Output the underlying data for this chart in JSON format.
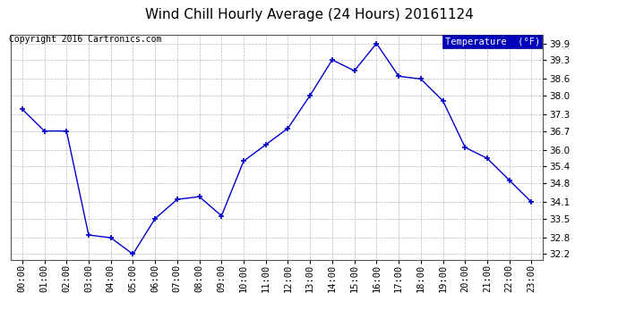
{
  "title": "Wind Chill Hourly Average (24 Hours) 20161124",
  "copyright": "Copyright 2016 Cartronics.com",
  "legend_label": "Temperature  (°F)",
  "hours": [
    "00:00",
    "01:00",
    "02:00",
    "03:00",
    "04:00",
    "05:00",
    "06:00",
    "07:00",
    "08:00",
    "09:00",
    "10:00",
    "11:00",
    "12:00",
    "13:00",
    "14:00",
    "15:00",
    "16:00",
    "17:00",
    "18:00",
    "19:00",
    "20:00",
    "21:00",
    "22:00",
    "23:00"
  ],
  "values": [
    37.5,
    36.7,
    36.7,
    32.9,
    32.8,
    32.2,
    33.5,
    34.2,
    34.3,
    33.6,
    35.6,
    36.2,
    36.8,
    38.0,
    39.3,
    38.9,
    39.9,
    38.7,
    38.6,
    37.8,
    36.1,
    35.7,
    34.9,
    34.1
  ],
  "ylim_min": 32.0,
  "ylim_max": 40.2,
  "yticks": [
    32.2,
    32.8,
    33.5,
    34.1,
    34.8,
    35.4,
    36.0,
    36.7,
    37.3,
    38.0,
    38.6,
    39.3,
    39.9
  ],
  "line_color": "#0000cc",
  "marker": "+",
  "marker_size": 4,
  "bg_color": "#ffffff",
  "grid_color": "#aaaaaa",
  "legend_bg": "#0000bb",
  "legend_fg": "#ffffff",
  "title_fontsize": 11,
  "copyright_fontsize": 7,
  "tick_fontsize": 7.5,
  "fig_width": 6.9,
  "fig_height": 3.75,
  "dpi": 100
}
